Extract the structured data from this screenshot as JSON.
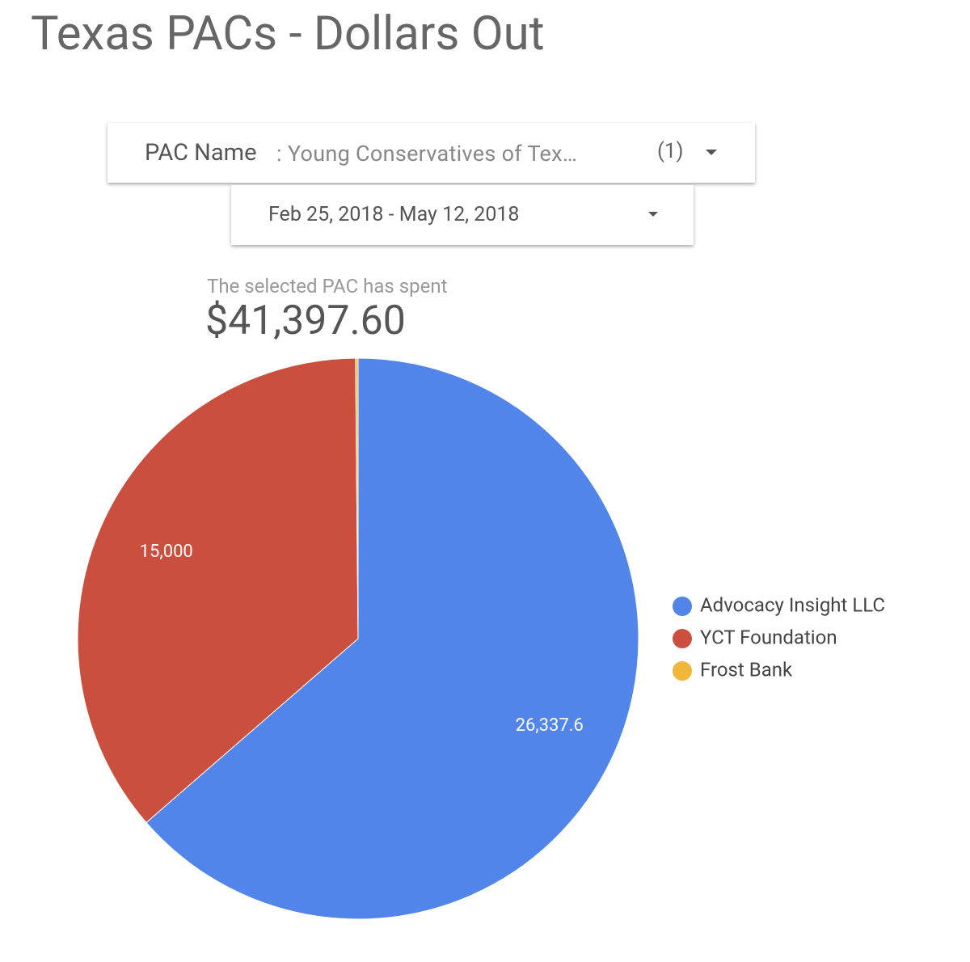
{
  "header": {
    "title": "Texas PACs - Dollars Out"
  },
  "filters": {
    "pac": {
      "label": "PAC Name",
      "value": ": Young Conservatives of Tex…",
      "count": "(1)"
    },
    "date_range": "Feb 25, 2018 - May 12, 2018"
  },
  "scorecard": {
    "label": "The selected PAC has spent",
    "value": "$41,397.60"
  },
  "chart_data": {
    "type": "pie",
    "categories": [
      "Advocacy Insight LLC",
      "YCT Foundation",
      "Frost Bank"
    ],
    "values": [
      26337.6,
      15000,
      60
    ],
    "value_labels": [
      "26,337.6",
      "15,000",
      null
    ],
    "colors": [
      "#5185e9",
      "#cb4f3f",
      "#f0b73a"
    ],
    "legend": "right"
  }
}
